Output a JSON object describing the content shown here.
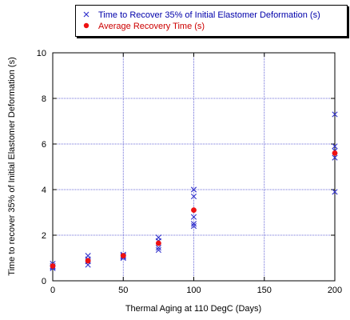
{
  "chart_data": {
    "type": "scatter",
    "title": "",
    "xlabel": "Thermal Aging at 110 DegC (Days)",
    "ylabel": "Time to recover 35% of Initial Elastomer Deformation (s)",
    "xlim": [
      0,
      200
    ],
    "ylim": [
      0,
      10
    ],
    "xticks": [
      "0",
      "50",
      "100",
      "150",
      "200"
    ],
    "yticks": [
      "0",
      "2",
      "4",
      "6",
      "8",
      "10"
    ],
    "grid": true,
    "legend_position": "top",
    "series": [
      {
        "name": "Time to Recover 35% of Initial Elastomer Deformation (s)",
        "marker": "x",
        "color": "#3333cc",
        "x": [
          0,
          0,
          0,
          0,
          25,
          25,
          25,
          25,
          50,
          50,
          50,
          50,
          75,
          75,
          75,
          75,
          100,
          100,
          100,
          100,
          100,
          200,
          200,
          200,
          200,
          200
        ],
        "y": [
          0.55,
          0.6,
          0.65,
          0.75,
          0.7,
          0.85,
          0.95,
          1.1,
          1.0,
          1.05,
          1.1,
          1.15,
          1.35,
          1.45,
          1.75,
          1.9,
          2.4,
          2.5,
          2.8,
          3.7,
          4.0,
          3.9,
          5.4,
          5.7,
          5.9,
          7.3
        ]
      },
      {
        "name": "Average Recovery Time (s)",
        "marker": "dot",
        "color": "#ee1111",
        "x": [
          0,
          25,
          50,
          75,
          100,
          200
        ],
        "y": [
          0.65,
          0.88,
          1.1,
          1.65,
          3.1,
          5.6
        ]
      }
    ]
  }
}
